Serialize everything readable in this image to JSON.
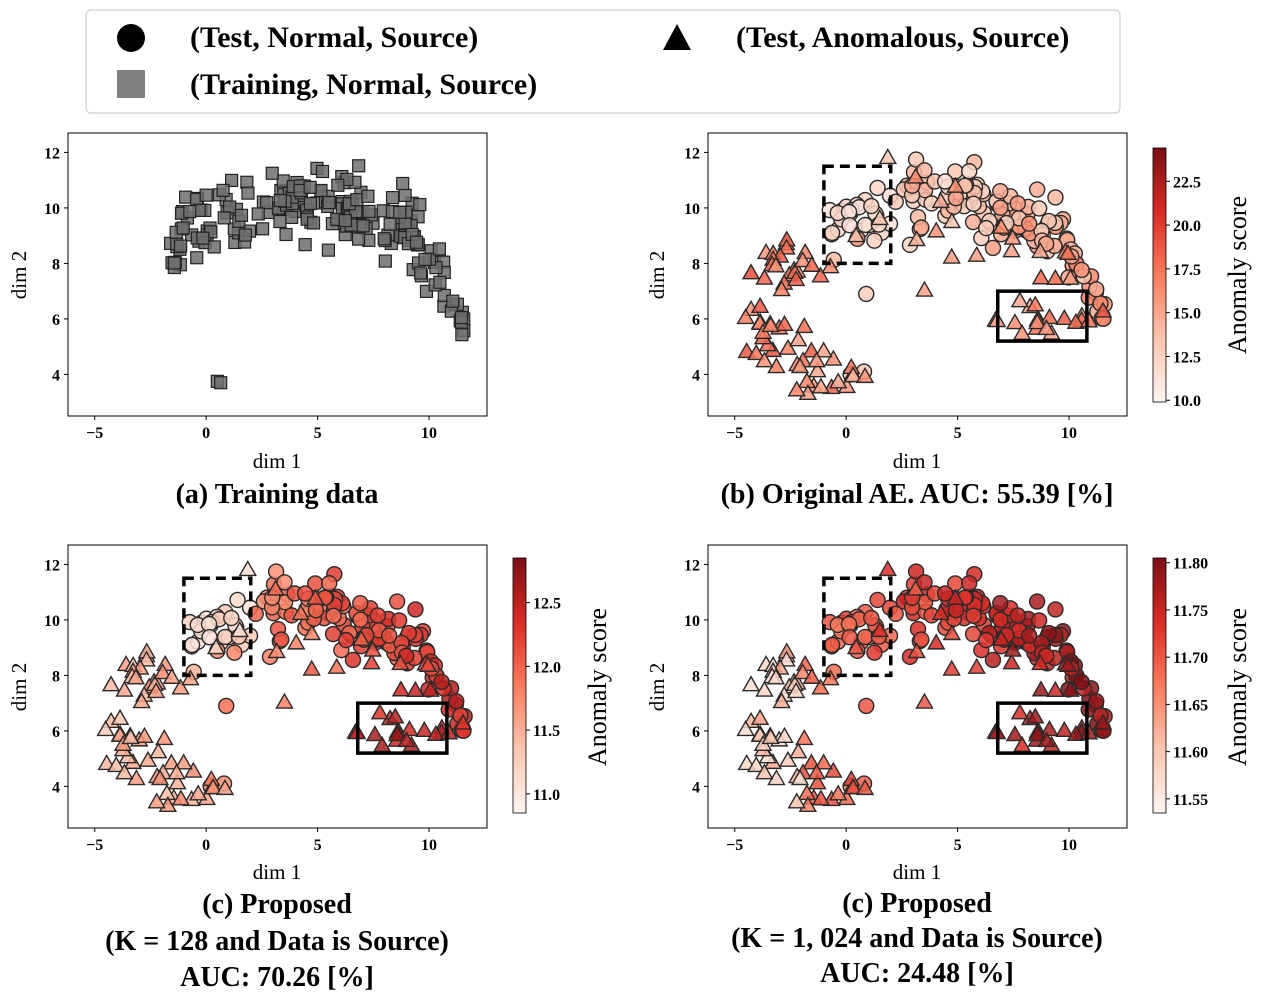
{
  "legend": {
    "entries": [
      {
        "marker": "circle",
        "label": "(Test, Normal, Source)",
        "color": "#000000"
      },
      {
        "marker": "triangle",
        "label": "(Test, Anomalous, Source)",
        "color": "#000000"
      },
      {
        "marker": "square",
        "label": "(Training, Normal, Source)",
        "color": "#808080"
      }
    ]
  },
  "colors": {
    "cmap_low": "#fff5f0",
    "cmap_mid": "#fb6a4a",
    "cmap_high": "#67000d",
    "training_fill": "#6e6e6e",
    "edge": "#222222"
  },
  "chart_data": [
    {
      "type": "scatter",
      "panel": "a",
      "caption": [
        "(a) Training data"
      ],
      "xlabel": "dim 1",
      "ylabel": "dim 2",
      "xlim": [
        -6.2,
        12.6
      ],
      "ylim": [
        2.5,
        12.7
      ],
      "xticks": [
        -5,
        0,
        5,
        10
      ],
      "yticks": [
        4,
        6,
        8,
        10,
        12
      ],
      "series": [
        {
          "name": "(Training, Normal, Source)",
          "marker": "square",
          "count": 210
        }
      ]
    },
    {
      "type": "scatter",
      "panel": "b",
      "caption": [
        "(b) Original AE. AUC: 55.39 [%]"
      ],
      "auc_percent": 55.39,
      "xlabel": "dim 1",
      "ylabel": "dim 2",
      "xlim": [
        -6.2,
        12.6
      ],
      "ylim": [
        2.5,
        12.7
      ],
      "xticks": [
        -5,
        0,
        5,
        10
      ],
      "yticks": [
        4,
        6,
        8,
        10,
        12
      ],
      "colorbar": {
        "label": "Anomaly score",
        "min": 9.9,
        "max": 24.4,
        "ticks": [
          "10.0",
          "12.5",
          "15.0",
          "17.5",
          "20.0",
          "22.5"
        ]
      },
      "boxes": [
        {
          "style": "dashed",
          "x": [
            -1,
            2
          ],
          "y": [
            8,
            11.5
          ]
        },
        {
          "style": "solid",
          "x": [
            6.8,
            10.8
          ],
          "y": [
            5.2,
            7
          ]
        }
      ],
      "series": [
        {
          "name": "(Test, Normal, Source)",
          "marker": "circle"
        },
        {
          "name": "(Test, Anomalous, Source)",
          "marker": "triangle"
        }
      ]
    },
    {
      "type": "scatter",
      "panel": "c",
      "caption": [
        "(c) Proposed",
        "(K = 128 and Data is Source)",
        "AUC: 70.26 [%]"
      ],
      "auc_percent": 70.26,
      "K": 128,
      "xlabel": "dim 1",
      "ylabel": "dim 2",
      "xlim": [
        -6.2,
        12.6
      ],
      "ylim": [
        2.5,
        12.7
      ],
      "xticks": [
        -5,
        0,
        5,
        10
      ],
      "yticks": [
        4,
        6,
        8,
        10,
        12
      ],
      "colorbar": {
        "label": "Anomaly score",
        "min": 10.85,
        "max": 12.85,
        "ticks": [
          "11.0",
          "11.5",
          "12.0",
          "12.5"
        ]
      },
      "boxes": [
        {
          "style": "dashed",
          "x": [
            -1,
            2
          ],
          "y": [
            8,
            11.5
          ]
        },
        {
          "style": "solid",
          "x": [
            6.8,
            10.8
          ],
          "y": [
            5.2,
            7
          ]
        }
      ],
      "series": [
        {
          "name": "(Test, Normal, Source)",
          "marker": "circle"
        },
        {
          "name": "(Test, Anomalous, Source)",
          "marker": "triangle"
        }
      ]
    },
    {
      "type": "scatter",
      "panel": "d",
      "caption": [
        "(c) Proposed",
        "(K = 1, 024 and Data is Source)",
        "AUC: 24.48 [%]"
      ],
      "auc_percent": 24.48,
      "K": 1024,
      "xlabel": "dim 1",
      "ylabel": "dim 2",
      "xlim": [
        -6.2,
        12.6
      ],
      "ylim": [
        2.5,
        12.7
      ],
      "xticks": [
        -5,
        0,
        5,
        10
      ],
      "yticks": [
        4,
        6,
        8,
        10,
        12
      ],
      "colorbar": {
        "label": "Anomaly score",
        "min": 11.535,
        "max": 11.805,
        "ticks": [
          "11.55",
          "11.60",
          "11.65",
          "11.70",
          "11.75",
          "11.80"
        ]
      },
      "boxes": [
        {
          "style": "dashed",
          "x": [
            -1,
            2
          ],
          "y": [
            8,
            11.5
          ]
        },
        {
          "style": "solid",
          "x": [
            6.8,
            10.8
          ],
          "y": [
            5.2,
            7
          ]
        }
      ],
      "series": [
        {
          "name": "(Test, Normal, Source)",
          "marker": "circle"
        },
        {
          "name": "(Test, Anomalous, Source)",
          "marker": "triangle"
        }
      ]
    }
  ]
}
